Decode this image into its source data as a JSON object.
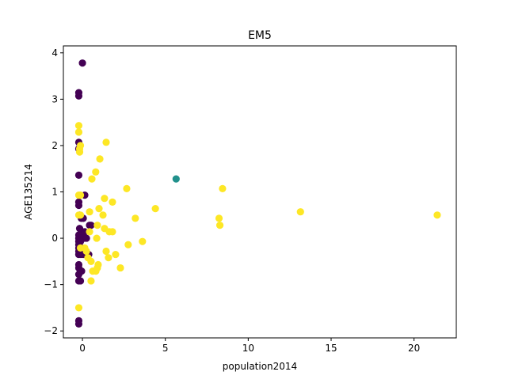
{
  "chart_data": {
    "type": "scatter",
    "title": "EM5",
    "xlabel": "population2014",
    "ylabel": "AGE135214",
    "xlim": [
      -1.15,
      22.55
    ],
    "ylim": [
      -2.15,
      4.15
    ],
    "xticks": [
      0,
      5,
      10,
      15,
      20
    ],
    "yticks": [
      -2,
      -1,
      0,
      1,
      2,
      3,
      4
    ],
    "grid": false,
    "legend": "none",
    "colors": {
      "cluster0": "#440154",
      "cluster1": "#21918c",
      "cluster2": "#fde725"
    },
    "series": [
      {
        "color_key": "cluster0",
        "points": [
          [
            0.0,
            3.78
          ],
          [
            -0.22,
            3.14
          ],
          [
            -0.22,
            3.07
          ],
          [
            -0.22,
            2.07
          ],
          [
            -0.22,
            1.93
          ],
          [
            -0.22,
            1.36
          ],
          [
            0.14,
            0.93
          ],
          [
            -0.22,
            0.78
          ],
          [
            -0.22,
            0.71
          ],
          [
            -0.17,
            0.5
          ],
          [
            -0.07,
            0.43
          ],
          [
            0.05,
            0.43
          ],
          [
            0.43,
            0.28
          ],
          [
            0.52,
            0.28
          ],
          [
            -0.17,
            0.21
          ],
          [
            0.0,
            0.14
          ],
          [
            0.14,
            0.14
          ],
          [
            -0.22,
            0.07
          ],
          [
            -0.22,
            0.0
          ],
          [
            -0.05,
            0.0
          ],
          [
            0.1,
            0.0
          ],
          [
            0.24,
            0.0
          ],
          [
            -0.22,
            -0.07
          ],
          [
            -0.12,
            -0.07
          ],
          [
            -0.22,
            -0.14
          ],
          [
            -0.22,
            -0.21
          ],
          [
            -0.05,
            -0.21
          ],
          [
            -0.22,
            -0.28
          ],
          [
            -0.12,
            -0.28
          ],
          [
            0.0,
            -0.28
          ],
          [
            -0.22,
            -0.35
          ],
          [
            -0.1,
            -0.35
          ],
          [
            0.05,
            -0.35
          ],
          [
            0.38,
            -0.35
          ],
          [
            -0.22,
            -0.57
          ],
          [
            -0.22,
            -0.64
          ],
          [
            -0.05,
            -0.71
          ],
          [
            -0.12,
            -0.71
          ],
          [
            -0.22,
            -0.78
          ],
          [
            -0.22,
            -0.92
          ],
          [
            -0.12,
            -0.92
          ],
          [
            -0.22,
            -1.78
          ],
          [
            -0.22,
            -1.85
          ]
        ]
      },
      {
        "color_key": "cluster1",
        "points": [
          [
            5.65,
            1.28
          ]
        ]
      },
      {
        "color_key": "cluster2",
        "points": [
          [
            -0.22,
            2.43
          ],
          [
            -0.22,
            2.29
          ],
          [
            -0.12,
            2.0
          ],
          [
            -0.17,
            1.93
          ],
          [
            -0.17,
            1.86
          ],
          [
            1.43,
            2.07
          ],
          [
            1.05,
            1.71
          ],
          [
            0.8,
            1.43
          ],
          [
            0.57,
            1.28
          ],
          [
            2.67,
            1.07
          ],
          [
            8.45,
            1.07
          ],
          [
            -0.22,
            0.93
          ],
          [
            -0.12,
            0.93
          ],
          [
            1.33,
            0.86
          ],
          [
            1.81,
            0.78
          ],
          [
            1.0,
            0.64
          ],
          [
            4.4,
            0.64
          ],
          [
            0.43,
            0.57
          ],
          [
            13.15,
            0.57
          ],
          [
            21.4,
            0.5
          ],
          [
            -0.22,
            0.5
          ],
          [
            -0.12,
            0.5
          ],
          [
            1.24,
            0.5
          ],
          [
            3.19,
            0.43
          ],
          [
            8.24,
            0.43
          ],
          [
            0.9,
            0.28
          ],
          [
            8.29,
            0.28
          ],
          [
            1.33,
            0.21
          ],
          [
            0.43,
            0.14
          ],
          [
            1.62,
            0.14
          ],
          [
            1.81,
            0.14
          ],
          [
            0.86,
            0.0
          ],
          [
            3.62,
            -0.07
          ],
          [
            2.76,
            -0.14
          ],
          [
            -0.12,
            -0.21
          ],
          [
            0.14,
            -0.21
          ],
          [
            1.43,
            -0.28
          ],
          [
            0.24,
            -0.28
          ],
          [
            2.0,
            -0.35
          ],
          [
            0.33,
            -0.42
          ],
          [
            1.57,
            -0.42
          ],
          [
            0.52,
            -0.5
          ],
          [
            0.95,
            -0.57
          ],
          [
            2.29,
            -0.64
          ],
          [
            0.62,
            -0.71
          ],
          [
            0.81,
            -0.71
          ],
          [
            0.9,
            -0.64
          ],
          [
            0.52,
            -0.92
          ],
          [
            -0.22,
            -1.5
          ]
        ]
      }
    ]
  }
}
